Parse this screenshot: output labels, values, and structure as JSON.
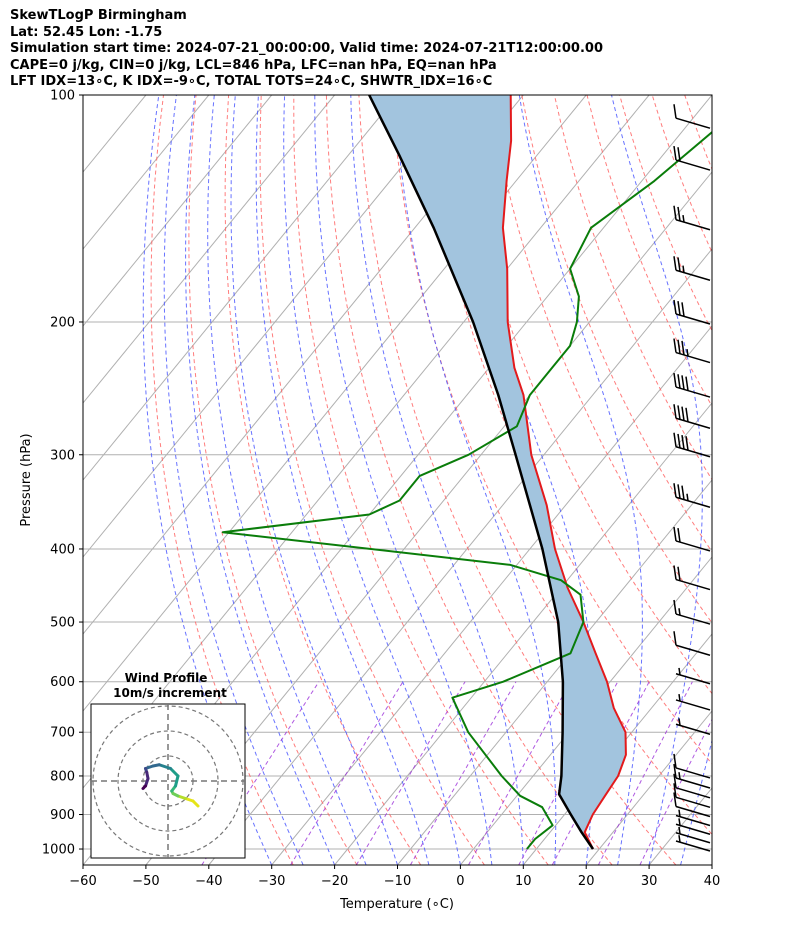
{
  "header": {
    "title": "SkewTLogP Birmingham",
    "location": "Lat: 52.45   Lon: -1.75",
    "times": "Simulation start time: 2024-07-21_00:00:00, Valid time: 2024-07-21T12:00:00.00",
    "params1": "CAPE=0 j/kg, CIN=0 j/kg, LCL=846 hPa, LFC=nan hPa, EQ=nan hPa",
    "params2": "LFT IDX=13∘C, K IDX=-9∘C, TOTAL TOTS=24∘C, SHWTR_IDX=16∘C"
  },
  "inset": {
    "title": "Wind Profile",
    "subtitle": "10m/s increment"
  },
  "chart_data": {
    "type": "line",
    "xlabel": "Temperature (∘C)",
    "ylabel": "Pressure (hPa)",
    "xlim": [
      -60,
      40
    ],
    "ylim": [
      1050,
      100
    ],
    "y_scale": "log",
    "skew": true,
    "x_ticks": [
      "−60",
      "−50",
      "−40",
      "−30",
      "−20",
      "−10",
      "0",
      "10",
      "20",
      "30",
      "40"
    ],
    "y_ticks": [
      "100",
      "200",
      "300",
      "400",
      "500",
      "600",
      "700",
      "800",
      "900",
      "1000"
    ],
    "grid": true,
    "colors": {
      "temperature": "#e31a1c",
      "dewpoint": "#0a7d0a",
      "parcel": "#000000",
      "cin_fill": "#a2c4de",
      "dry_adiabat": "#ff6666",
      "moist_adiabat": "#4d5bff",
      "mixing_ratio": "#9b30d9"
    },
    "series": [
      {
        "key": "temperature",
        "p": [
          1000,
          950,
          900,
          850,
          800,
          750,
          700,
          650,
          600,
          550,
          500,
          450,
          400,
          350,
          300,
          250,
          230,
          200,
          170,
          150,
          130,
          115,
          100
        ],
        "t": [
          19,
          15.5,
          14.5,
          14,
          13.5,
          12,
          9,
          4,
          -0.5,
          -6,
          -12,
          -19,
          -26,
          -33,
          -42,
          -51,
          -56,
          -63,
          -70,
          -76,
          -81.5,
          -86,
          -92
        ]
      },
      {
        "key": "dewpoint",
        "p": [
          1000,
          970,
          930,
          880,
          850,
          800,
          700,
          630,
          600,
          550,
          500,
          460,
          440,
          420,
          380,
          360,
          345,
          320,
          300,
          275,
          250,
          230,
          215,
          200,
          185,
          170,
          150,
          130,
          100
        ],
        "t": [
          8.5,
          8.5,
          9.5,
          5.5,
          0.5,
          -5,
          -16,
          -23,
          -17,
          -10,
          -12,
          -16,
          -21,
          -31,
          -81,
          -60,
          -57,
          -57,
          -52,
          -48,
          -50,
          -50,
          -50,
          -52,
          -55,
          -60,
          -62,
          -58,
          -53
        ]
      },
      {
        "key": "parcel",
        "p": [
          1000,
          950,
          900,
          846,
          800,
          700,
          600,
          500,
          400,
          300,
          250,
          200,
          150,
          120,
          100
        ],
        "t": [
          19,
          15,
          11,
          6.5,
          4.5,
          -1,
          -7.5,
          -16,
          -28,
          -44.5,
          -55,
          -68.5,
          -87,
          -102,
          -114.5
        ]
      }
    ],
    "cin_region": {
      "from": "temperature",
      "to": "parcel"
    },
    "wind_barbs": {
      "p": [
        1000,
        975,
        950,
        925,
        900,
        875,
        850,
        825,
        800,
        700,
        650,
        600,
        550,
        500,
        450,
        400,
        350,
        300,
        275,
        250,
        225,
        200,
        175,
        150,
        125,
        110
      ],
      "spd_kt": [
        5,
        5,
        5,
        5,
        10,
        10,
        10,
        15,
        10,
        5,
        5,
        5,
        10,
        15,
        20,
        20,
        35,
        40,
        40,
        40,
        35,
        30,
        25,
        25,
        20,
        10
      ],
      "dir": [
        250,
        255,
        255,
        260,
        255,
        260,
        270,
        270,
        280,
        300,
        300,
        290,
        280,
        270,
        270,
        270,
        265,
        265,
        265,
        265,
        265,
        270,
        275,
        275,
        280,
        285
      ]
    },
    "hodograph": {
      "rings": [
        10,
        20,
        30
      ],
      "u": [
        12,
        10,
        7,
        4,
        2,
        1.5,
        3,
        4,
        1,
        -3.5,
        -6,
        -9,
        -8.5,
        -8,
        -9,
        -10
      ],
      "v": [
        -10,
        -8,
        -7,
        -6,
        -5,
        -4,
        -2,
        2,
        5,
        6.5,
        6,
        5,
        3.5,
        1,
        -2,
        -3
      ]
    }
  }
}
